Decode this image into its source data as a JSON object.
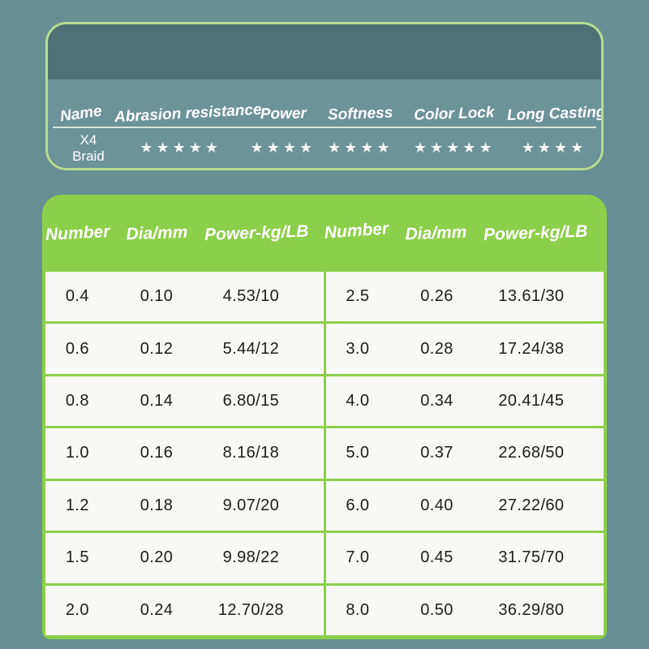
{
  "colors": {
    "page_bg": "#678f93",
    "card_top_band": "#4d7175",
    "card_bottom_band": "#6b9398",
    "card_border": "#b7dc92",
    "table_green": "#8ccf4a",
    "cell_bg": "#f8f9f6",
    "header_text": "#ffffff",
    "body_text": "#1c1c1c",
    "star_color": "#f4f6f1"
  },
  "icons": {
    "star_icon": "★"
  },
  "ratings_card": {
    "columns": [
      "Name",
      "Abrasion resistance",
      "Power",
      "Softness",
      "Color Lock",
      "Long Casting"
    ],
    "product": "X4 Braid",
    "stars": [
      5,
      4,
      4,
      5,
      4
    ]
  },
  "spec_table": {
    "headers": [
      "Number",
      "Dia/mm",
      "Power-kg/LB",
      "Number",
      "Dia/mm",
      "Power-kg/LB"
    ],
    "left_rows": [
      [
        "0.4",
        "0.10",
        "4.53/10"
      ],
      [
        "0.6",
        "0.12",
        "5.44/12"
      ],
      [
        "0.8",
        "0.14",
        "6.80/15"
      ],
      [
        "1.0",
        "0.16",
        "8.16/18"
      ],
      [
        "1.2",
        "0.18",
        "9.07/20"
      ],
      [
        "1.5",
        "0.20",
        "9.98/22"
      ],
      [
        "2.0",
        "0.24",
        "12.70/28"
      ]
    ],
    "right_rows": [
      [
        "2.5",
        "0.26",
        "13.61/30"
      ],
      [
        "3.0",
        "0.28",
        "17.24/38"
      ],
      [
        "4.0",
        "0.34",
        "20.41/45"
      ],
      [
        "5.0",
        "0.37",
        "22.68/50"
      ],
      [
        "6.0",
        "0.40",
        "27.22/60"
      ],
      [
        "7.0",
        "0.45",
        "31.75/70"
      ],
      [
        "8.0",
        "0.50",
        "36.29/80"
      ]
    ]
  }
}
